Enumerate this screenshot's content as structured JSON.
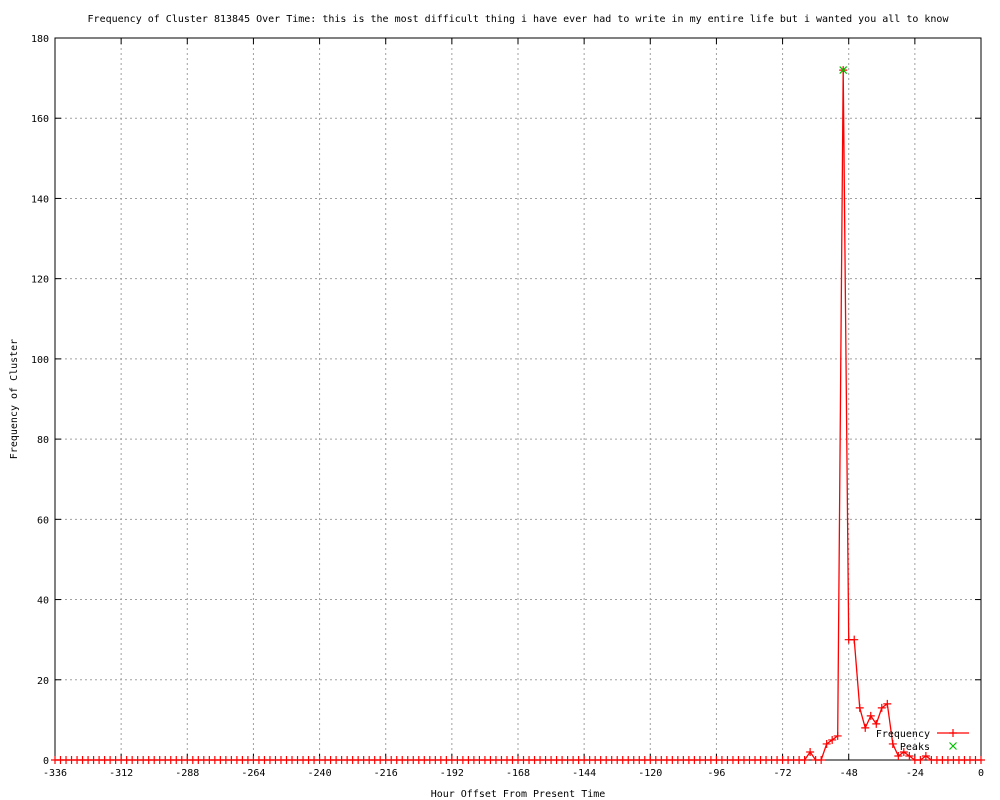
{
  "chart_data": {
    "type": "line",
    "title": "Frequency of Cluster 813845 Over Time: this is the most difficult thing i have ever had to write in my entire life but i wanted you all to know",
    "xlabel": "Hour Offset From Present Time",
    "ylabel": "Frequency of Cluster",
    "xlim": [
      -336,
      0
    ],
    "ylim": [
      0,
      180
    ],
    "xticks": [
      -336,
      -312,
      -288,
      -264,
      -240,
      -216,
      -192,
      -168,
      -144,
      -120,
      -96,
      -72,
      -48,
      -24,
      0
    ],
    "yticks": [
      0,
      20,
      40,
      60,
      80,
      100,
      120,
      140,
      160,
      180
    ],
    "grid": true,
    "legend_position": "bottom-right",
    "series": [
      {
        "name": "Frequency",
        "color": "#ff0000",
        "marker": "plus",
        "x": [
          -336,
          -334,
          -332,
          -330,
          -328,
          -326,
          -324,
          -322,
          -320,
          -318,
          -316,
          -314,
          -312,
          -310,
          -308,
          -306,
          -304,
          -302,
          -300,
          -298,
          -296,
          -294,
          -292,
          -290,
          -288,
          -286,
          -284,
          -282,
          -280,
          -278,
          -276,
          -274,
          -272,
          -270,
          -268,
          -266,
          -264,
          -262,
          -260,
          -258,
          -256,
          -254,
          -252,
          -250,
          -248,
          -246,
          -244,
          -242,
          -240,
          -238,
          -236,
          -234,
          -232,
          -230,
          -228,
          -226,
          -224,
          -222,
          -220,
          -218,
          -216,
          -214,
          -212,
          -210,
          -208,
          -206,
          -204,
          -202,
          -200,
          -198,
          -196,
          -194,
          -192,
          -190,
          -188,
          -186,
          -184,
          -182,
          -180,
          -178,
          -176,
          -174,
          -172,
          -170,
          -168,
          -166,
          -164,
          -162,
          -160,
          -158,
          -156,
          -154,
          -152,
          -150,
          -148,
          -146,
          -144,
          -142,
          -140,
          -138,
          -136,
          -134,
          -132,
          -130,
          -128,
          -126,
          -124,
          -122,
          -120,
          -118,
          -116,
          -114,
          -112,
          -110,
          -108,
          -106,
          -104,
          -102,
          -100,
          -98,
          -96,
          -94,
          -92,
          -90,
          -88,
          -86,
          -84,
          -82,
          -80,
          -78,
          -76,
          -74,
          -72,
          -70,
          -68,
          -66,
          -64,
          -62,
          -60,
          -58,
          -56,
          -54,
          -52,
          -50,
          -48,
          -46,
          -44,
          -42,
          -40,
          -38,
          -36,
          -34,
          -32,
          -30,
          -28,
          -26,
          -24,
          -22,
          -20,
          -18,
          -16,
          -14,
          -12,
          -10,
          -8,
          -6,
          -4,
          -2,
          0
        ],
        "y": [
          0,
          0,
          0,
          0,
          0,
          0,
          0,
          0,
          0,
          0,
          0,
          0,
          0,
          0,
          0,
          0,
          0,
          0,
          0,
          0,
          0,
          0,
          0,
          0,
          0,
          0,
          0,
          0,
          0,
          0,
          0,
          0,
          0,
          0,
          0,
          0,
          0,
          0,
          0,
          0,
          0,
          0,
          0,
          0,
          0,
          0,
          0,
          0,
          0,
          0,
          0,
          0,
          0,
          0,
          0,
          0,
          0,
          0,
          0,
          0,
          0,
          0,
          0,
          0,
          0,
          0,
          0,
          0,
          0,
          0,
          0,
          0,
          0,
          0,
          0,
          0,
          0,
          0,
          0,
          0,
          0,
          0,
          0,
          0,
          0,
          0,
          0,
          0,
          0,
          0,
          0,
          0,
          0,
          0,
          0,
          0,
          0,
          0,
          0,
          0,
          0,
          0,
          0,
          0,
          0,
          0,
          0,
          0,
          0,
          0,
          0,
          0,
          0,
          0,
          0,
          0,
          0,
          0,
          0,
          0,
          0,
          0,
          0,
          0,
          0,
          0,
          0,
          0,
          0,
          0,
          0,
          0,
          0,
          0,
          0,
          0,
          0,
          2,
          0,
          0,
          4,
          5,
          6,
          172,
          30,
          30,
          13,
          8,
          11,
          9,
          13,
          14,
          4,
          1,
          2,
          1,
          0,
          0,
          1,
          0,
          0,
          0,
          0,
          0,
          0,
          0,
          0,
          0,
          0
        ]
      },
      {
        "name": "Peaks",
        "color": "#00c000",
        "marker": "cross",
        "x": [
          -50
        ],
        "y": [
          172
        ]
      }
    ]
  }
}
